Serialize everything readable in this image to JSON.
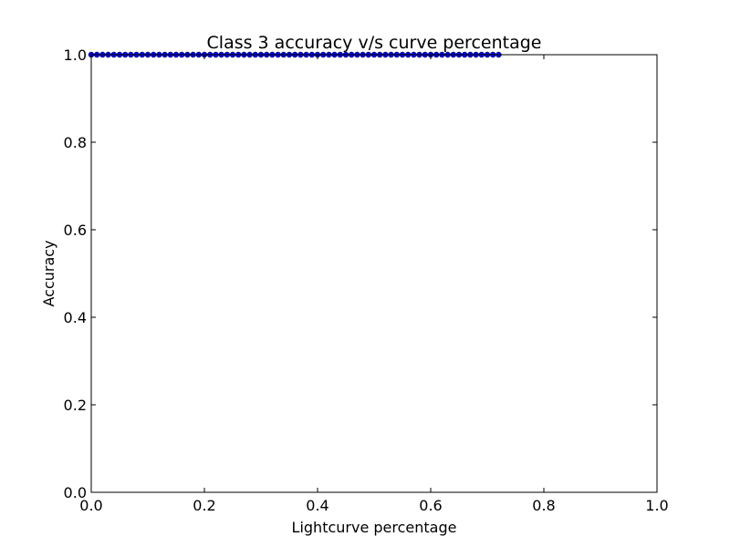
{
  "chart_data": {
    "type": "line",
    "title": "Class 3 accuracy v/s curve percentage",
    "xlabel": "Lightcurve percentage",
    "ylabel": "Accuracy",
    "xlim": [
      0.0,
      1.0
    ],
    "ylim": [
      0.0,
      1.0
    ],
    "xticks": [
      "0.0",
      "0.2",
      "0.4",
      "0.6",
      "0.8",
      "1.0"
    ],
    "yticks": [
      "0.0",
      "0.2",
      "0.4",
      "0.6",
      "0.8",
      "1.0"
    ],
    "grid": false,
    "legend": "none",
    "series": [
      {
        "color": "#0000ff",
        "marker": "circle",
        "x": [
          0.0,
          0.01,
          0.02,
          0.03,
          0.04,
          0.05,
          0.06,
          0.07,
          0.08,
          0.09,
          0.1,
          0.11,
          0.12,
          0.13,
          0.14,
          0.15,
          0.16,
          0.17,
          0.18,
          0.19,
          0.2,
          0.21,
          0.22,
          0.23,
          0.24,
          0.25,
          0.26,
          0.27,
          0.28,
          0.29,
          0.3,
          0.31,
          0.32,
          0.33,
          0.34,
          0.35,
          0.36,
          0.37,
          0.38,
          0.39,
          0.4,
          0.41,
          0.42,
          0.43,
          0.44,
          0.45,
          0.46,
          0.47,
          0.48,
          0.49,
          0.5,
          0.51,
          0.52,
          0.53,
          0.54,
          0.55,
          0.56,
          0.57,
          0.58,
          0.59,
          0.6,
          0.61,
          0.62,
          0.63,
          0.64,
          0.65,
          0.66,
          0.67,
          0.68,
          0.69,
          0.7,
          0.71,
          0.72
        ],
        "y": [
          1.0,
          1.0,
          1.0,
          1.0,
          1.0,
          1.0,
          1.0,
          1.0,
          1.0,
          1.0,
          1.0,
          1.0,
          1.0,
          1.0,
          1.0,
          1.0,
          1.0,
          1.0,
          1.0,
          1.0,
          1.0,
          1.0,
          1.0,
          1.0,
          1.0,
          1.0,
          1.0,
          1.0,
          1.0,
          1.0,
          1.0,
          1.0,
          1.0,
          1.0,
          1.0,
          1.0,
          1.0,
          1.0,
          1.0,
          1.0,
          1.0,
          1.0,
          1.0,
          1.0,
          1.0,
          1.0,
          1.0,
          1.0,
          1.0,
          1.0,
          1.0,
          1.0,
          1.0,
          1.0,
          1.0,
          1.0,
          1.0,
          1.0,
          1.0,
          1.0,
          1.0,
          1.0,
          1.0,
          1.0,
          1.0,
          1.0,
          1.0,
          1.0,
          1.0,
          1.0,
          1.0,
          1.0,
          1.0
        ]
      }
    ]
  }
}
